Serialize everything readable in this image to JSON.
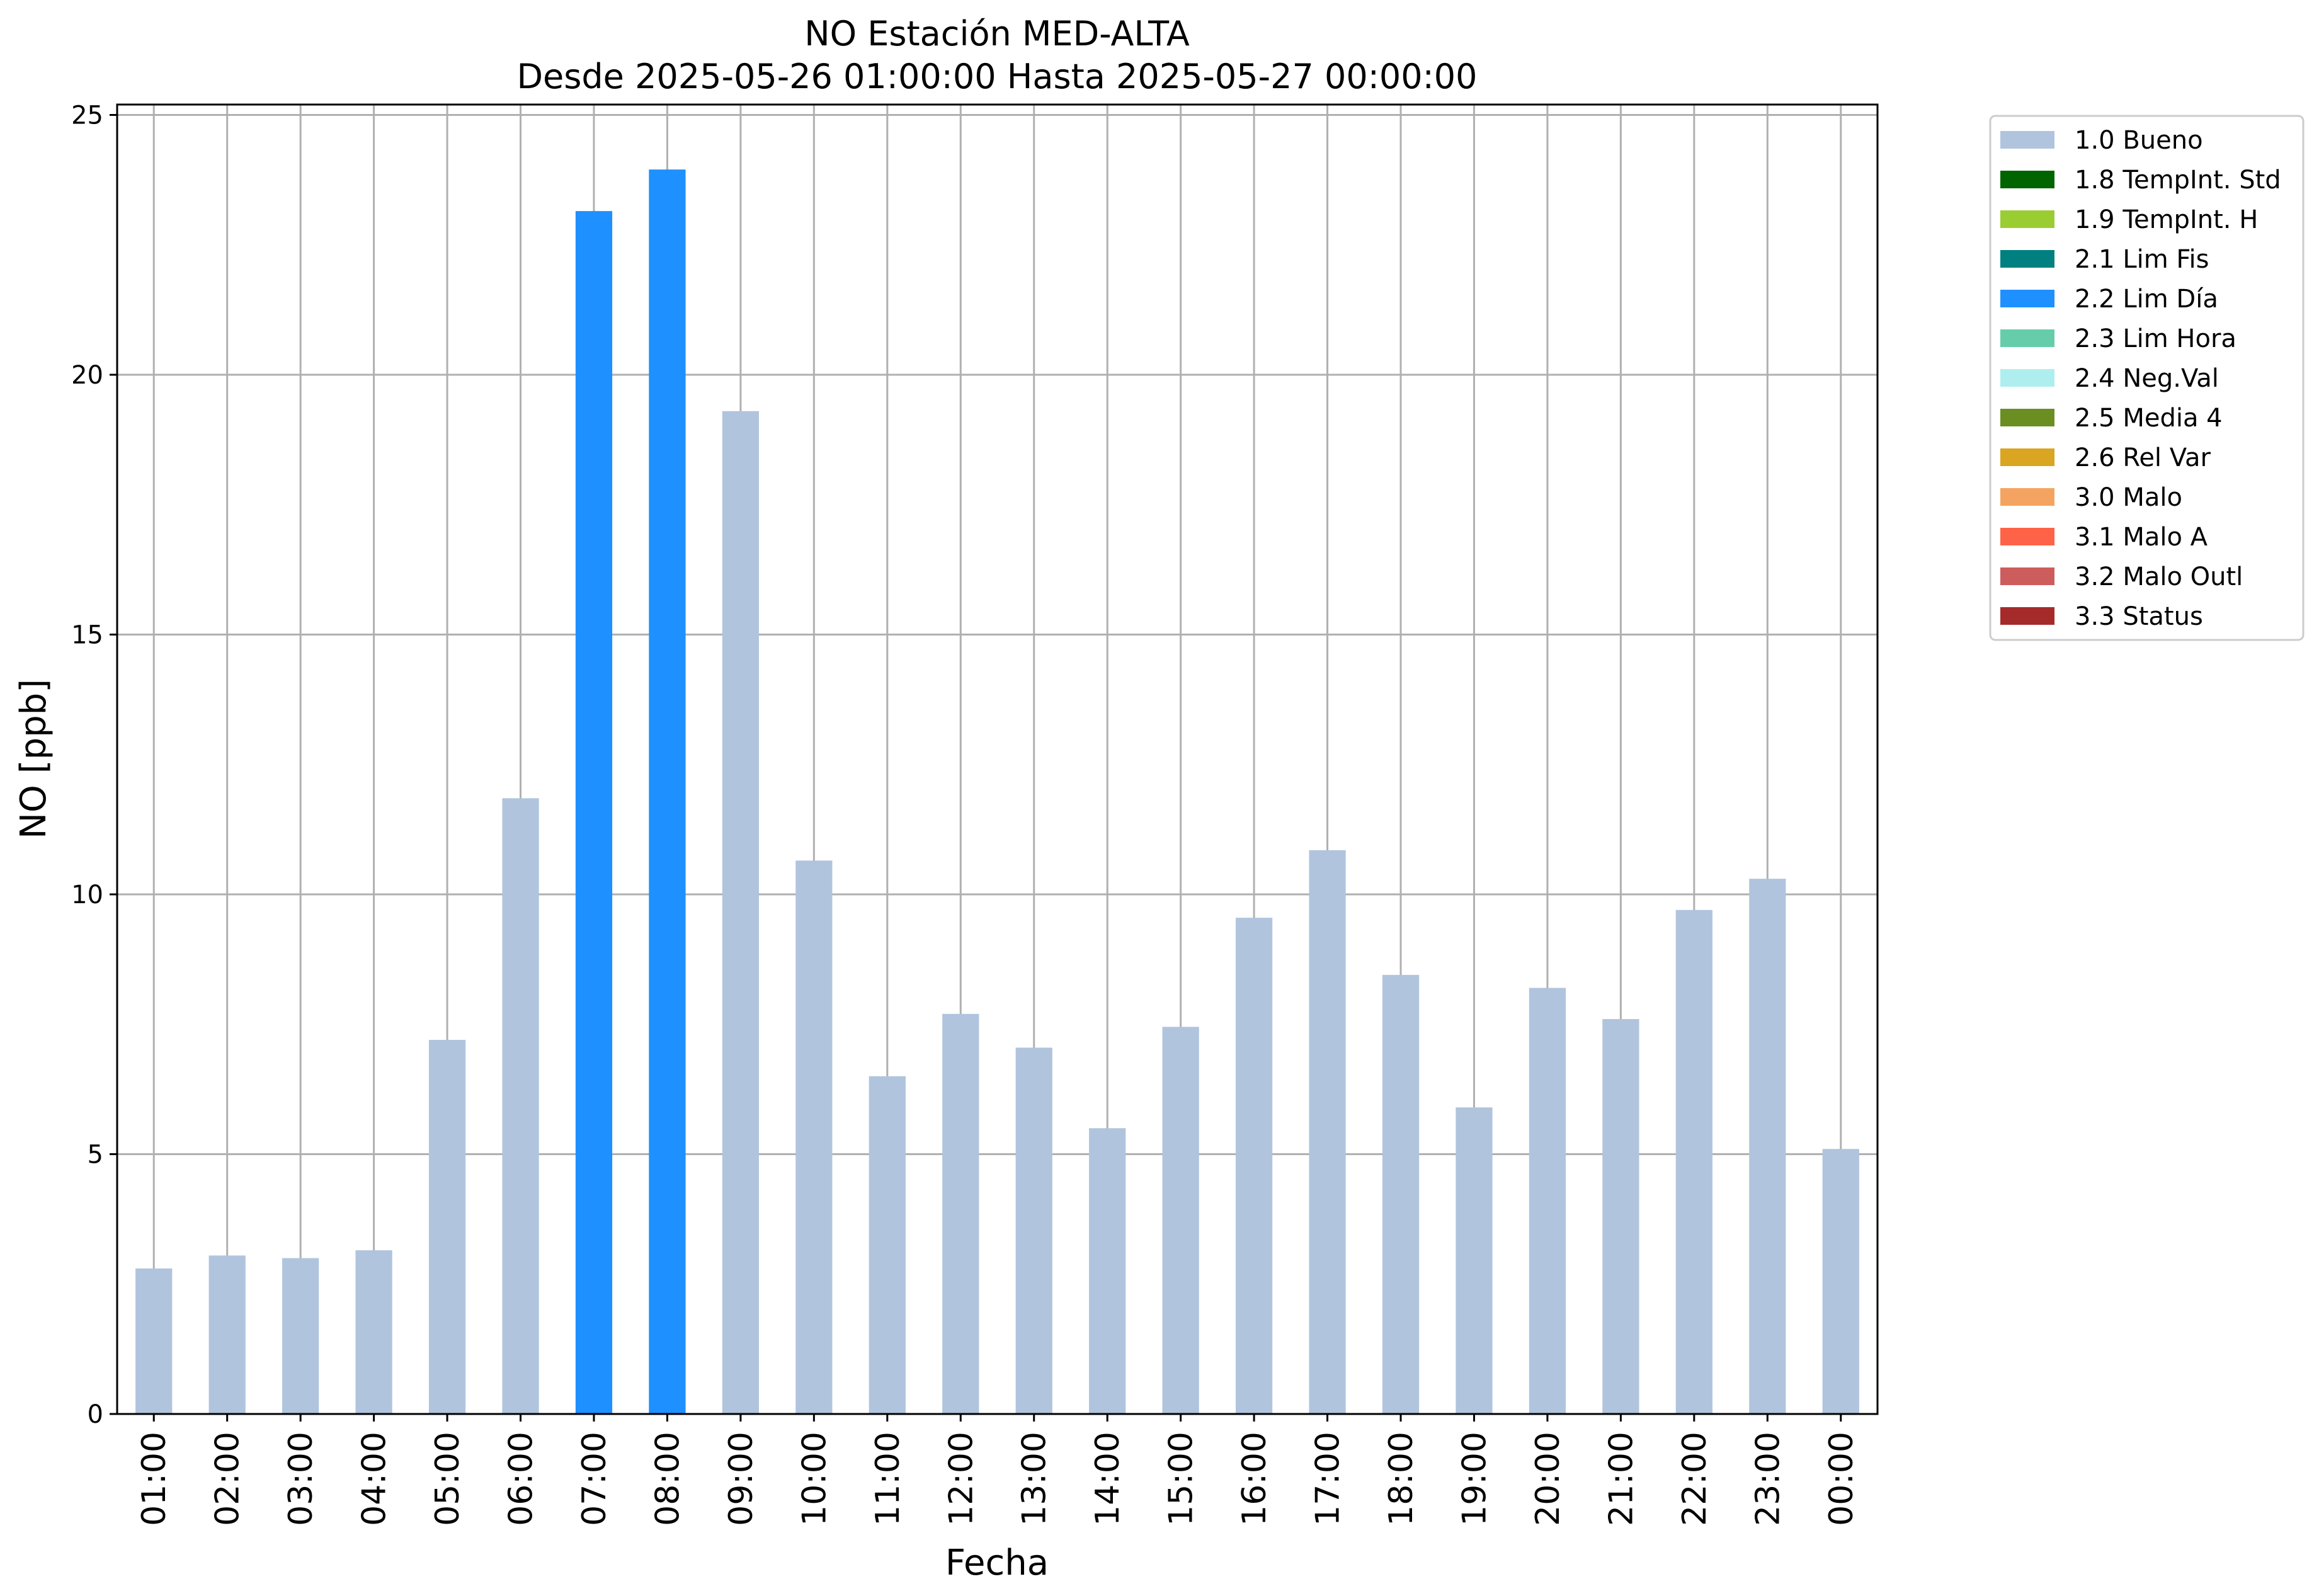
{
  "chart_data": {
    "type": "bar",
    "title": [
      "NO Estación MED-ALTA",
      "Desde 2025-05-26 01:00:00 Hasta 2025-05-27 00:00:00"
    ],
    "xlabel": "Fecha",
    "ylabel": "NO [ppb]",
    "ylim": [
      0,
      25.2
    ],
    "yticks": [
      0,
      5,
      10,
      15,
      20,
      25
    ],
    "grid": true,
    "legend_position": "outside right, top",
    "categories": [
      "01:00",
      "02:00",
      "03:00",
      "04:00",
      "05:00",
      "06:00",
      "07:00",
      "08:00",
      "09:00",
      "10:00",
      "11:00",
      "12:00",
      "13:00",
      "14:00",
      "15:00",
      "16:00",
      "17:00",
      "18:00",
      "19:00",
      "20:00",
      "21:00",
      "22:00",
      "23:00",
      "00:00"
    ],
    "values": [
      2.8,
      3.05,
      3.0,
      3.15,
      7.2,
      11.85,
      23.15,
      23.95,
      19.3,
      10.65,
      6.5,
      7.7,
      7.05,
      5.5,
      7.45,
      9.55,
      10.85,
      8.45,
      5.9,
      8.2,
      7.6,
      9.7,
      10.3,
      5.1
    ],
    "flags": [
      "1.0 Bueno",
      "1.0 Bueno",
      "1.0 Bueno",
      "1.0 Bueno",
      "1.0 Bueno",
      "1.0 Bueno",
      "2.2 Lim Día",
      "2.2 Lim Día",
      "1.0 Bueno",
      "1.0 Bueno",
      "1.0 Bueno",
      "1.0 Bueno",
      "1.0 Bueno",
      "1.0 Bueno",
      "1.0 Bueno",
      "1.0 Bueno",
      "1.0 Bueno",
      "1.0 Bueno",
      "1.0 Bueno",
      "1.0 Bueno",
      "1.0 Bueno",
      "1.0 Bueno",
      "1.0 Bueno",
      "1.0 Bueno"
    ],
    "legend": [
      {
        "label": "1.0 Bueno",
        "color": "#b0c4de"
      },
      {
        "label": "1.8 TempInt. Std",
        "color": "#006400"
      },
      {
        "label": "1.9 TempInt. H",
        "color": "#9acd32"
      },
      {
        "label": "2.1 Lim Fis",
        "color": "#008080"
      },
      {
        "label": "2.2 Lim Día",
        "color": "#1e90ff"
      },
      {
        "label": "2.3 Lim Hora",
        "color": "#66cdaa"
      },
      {
        "label": "2.4 Neg.Val",
        "color": "#afeeee"
      },
      {
        "label": "2.5 Media 4",
        "color": "#6b8e23"
      },
      {
        "label": "2.6 Rel Var",
        "color": "#daa520"
      },
      {
        "label": "3.0 Malo",
        "color": "#f4a460"
      },
      {
        "label": "3.1 Malo A",
        "color": "#ff6347"
      },
      {
        "label": "3.2 Malo Outl",
        "color": "#cd5c5c"
      },
      {
        "label": "3.3 Status",
        "color": "#a52a2a"
      }
    ]
  }
}
